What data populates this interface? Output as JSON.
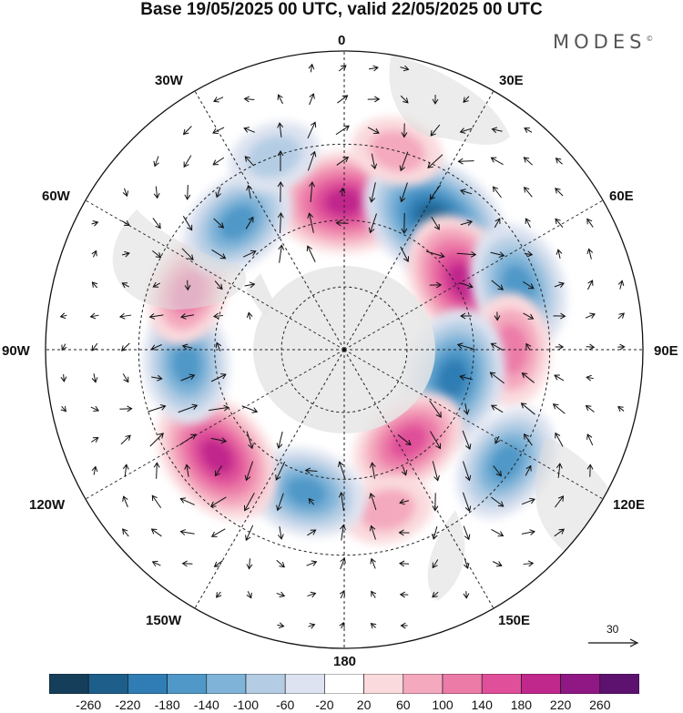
{
  "title": "Base 19/05/2025 00 UTC, valid 22/05/2025 00 UTC",
  "brand": "MODES",
  "brand_mark": "©",
  "longitude_labels": {
    "top": "0",
    "top_right": "30E",
    "right_upper": "60E",
    "right": "90E",
    "right_lower": "120E",
    "bottom_right": "150E",
    "bottom": "180",
    "bottom_left": "150W",
    "left_lower": "120W",
    "left": "90W",
    "left_upper": "60W",
    "top_left": "30W"
  },
  "vector_reference": "30",
  "colorbar": {
    "ticks": [
      "-260",
      "-220",
      "-180",
      "-140",
      "-100",
      "-60",
      "-20",
      "20",
      "60",
      "100",
      "140",
      "180",
      "220",
      "260"
    ],
    "colors": [
      "#153e5a",
      "#1d5e8a",
      "#2f7db4",
      "#4f98c8",
      "#7fb4d8",
      "#b4cde4",
      "#dde3f0",
      "#ffffff",
      "#fadadd",
      "#f4a9be",
      "#ec7ba8",
      "#e0509a",
      "#c1288c",
      "#8f1884",
      "#5e1270"
    ]
  },
  "map": {
    "projection": "south polar stereographic",
    "anomalies": [
      {
        "lon": 0,
        "lat": -45,
        "value": 200
      },
      {
        "lon": 35,
        "lat": -42,
        "value": -240
      },
      {
        "lon": 60,
        "lat": -48,
        "value": 200
      },
      {
        "lon": 70,
        "lat": -35,
        "value": -160
      },
      {
        "lon": 90,
        "lat": -40,
        "value": 120
      },
      {
        "lon": 105,
        "lat": -55,
        "value": -200
      },
      {
        "lon": 125,
        "lat": -32,
        "value": -140
      },
      {
        "lon": 145,
        "lat": -55,
        "value": 140
      },
      {
        "lon": 165,
        "lat": -40,
        "value": 60
      },
      {
        "lon": -165,
        "lat": -45,
        "value": -140
      },
      {
        "lon": -130,
        "lat": -40,
        "value": 200
      },
      {
        "lon": -95,
        "lat": -42,
        "value": -140
      },
      {
        "lon": -70,
        "lat": -40,
        "value": 100
      },
      {
        "lon": -40,
        "lat": -40,
        "value": -140
      },
      {
        "lon": -20,
        "lat": -30,
        "value": -60
      },
      {
        "lon": 15,
        "lat": -30,
        "value": 60
      }
    ]
  }
}
